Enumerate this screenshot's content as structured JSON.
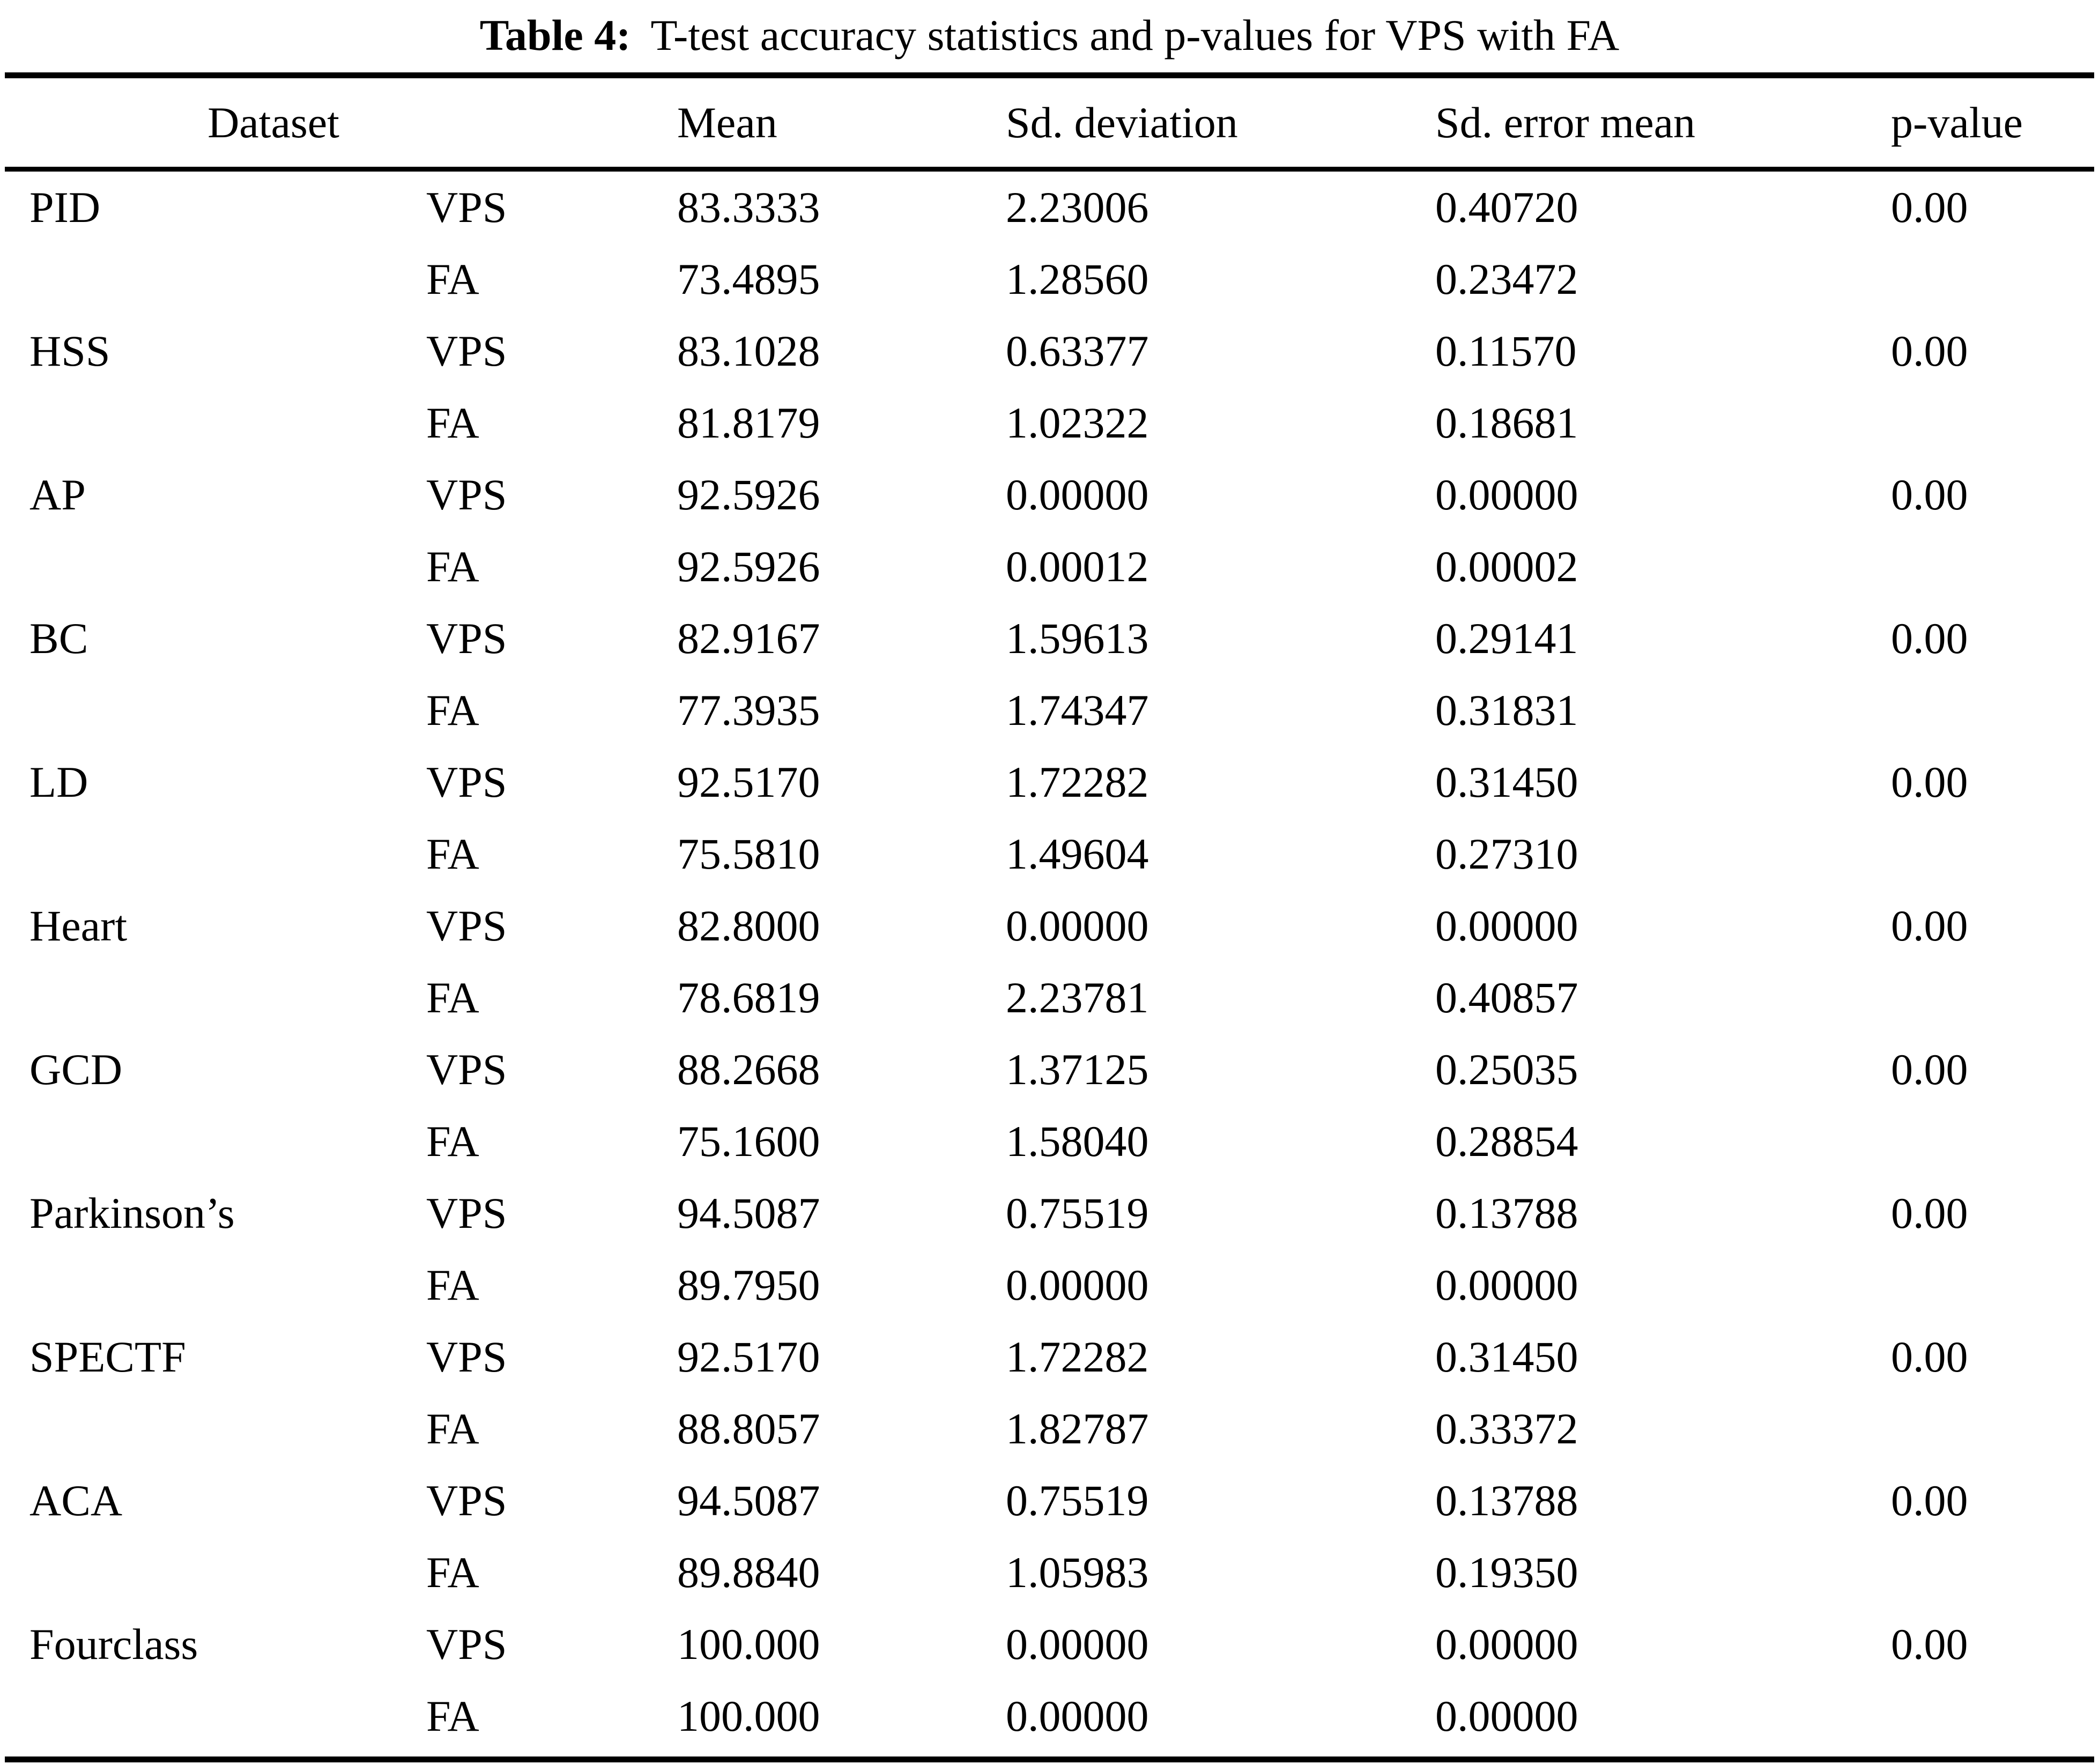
{
  "caption": {
    "label": "Table 4:",
    "text": "T-test accuracy statistics and p-values for VPS with FA"
  },
  "headers": {
    "dataset": "Dataset",
    "mean": "Mean",
    "sd": "Sd. deviation",
    "se": "Sd. error mean",
    "p": "p-value"
  },
  "methods": [
    "VPS",
    "FA"
  ],
  "colors": {
    "text": "#000000",
    "background": "#ffffff",
    "rule": "#000000"
  },
  "rows": [
    {
      "dataset": "PID",
      "vps": {
        "mean": "83.3333",
        "sd": "2.23006",
        "se": "0.40720"
      },
      "fa": {
        "mean": "73.4895",
        "sd": "1.28560",
        "se": "0.23472"
      },
      "p": "0.00"
    },
    {
      "dataset": "HSS",
      "vps": {
        "mean": "83.1028",
        "sd": "0.63377",
        "se": "0.11570"
      },
      "fa": {
        "mean": "81.8179",
        "sd": "1.02322",
        "se": "0.18681"
      },
      "p": "0.00"
    },
    {
      "dataset": "AP",
      "vps": {
        "mean": "92.5926",
        "sd": "0.00000",
        "se": "0.00000"
      },
      "fa": {
        "mean": "92.5926",
        "sd": "0.00012",
        "se": "0.00002"
      },
      "p": "0.00"
    },
    {
      "dataset": "BC",
      "vps": {
        "mean": "82.9167",
        "sd": "1.59613",
        "se": "0.29141"
      },
      "fa": {
        "mean": "77.3935",
        "sd": "1.74347",
        "se": "0.31831"
      },
      "p": "0.00"
    },
    {
      "dataset": "LD",
      "vps": {
        "mean": "92.5170",
        "sd": "1.72282",
        "se": "0.31450"
      },
      "fa": {
        "mean": "75.5810",
        "sd": "1.49604",
        "se": "0.27310"
      },
      "p": "0.00"
    },
    {
      "dataset": "Heart",
      "vps": {
        "mean": "82.8000",
        "sd": "0.00000",
        "se": "0.00000"
      },
      "fa": {
        "mean": "78.6819",
        "sd": "2.23781",
        "se": "0.40857"
      },
      "p": "0.00"
    },
    {
      "dataset": "GCD",
      "vps": {
        "mean": "88.2668",
        "sd": "1.37125",
        "se": "0.25035"
      },
      "fa": {
        "mean": "75.1600",
        "sd": "1.58040",
        "se": "0.28854"
      },
      "p": "0.00"
    },
    {
      "dataset": "Parkinson’s",
      "vps": {
        "mean": "94.5087",
        "sd": "0.75519",
        "se": "0.13788"
      },
      "fa": {
        "mean": "89.7950",
        "sd": "0.00000",
        "se": "0.00000"
      },
      "p": "0.00"
    },
    {
      "dataset": "SPECTF",
      "vps": {
        "mean": "92.5170",
        "sd": "1.72282",
        "se": "0.31450"
      },
      "fa": {
        "mean": "88.8057",
        "sd": "1.82787",
        "se": "0.33372"
      },
      "p": "0.00"
    },
    {
      "dataset": "ACA",
      "vps": {
        "mean": "94.5087",
        "sd": "0.75519",
        "se": "0.13788"
      },
      "fa": {
        "mean": "89.8840",
        "sd": "1.05983",
        "se": "0.19350"
      },
      "p": "0.00"
    },
    {
      "dataset": "Fourclass",
      "vps": {
        "mean": "100.000",
        "sd": "0.00000",
        "se": "0.00000"
      },
      "fa": {
        "mean": "100.000",
        "sd": "0.00000",
        "se": "0.00000"
      },
      "p": "0.00"
    }
  ]
}
